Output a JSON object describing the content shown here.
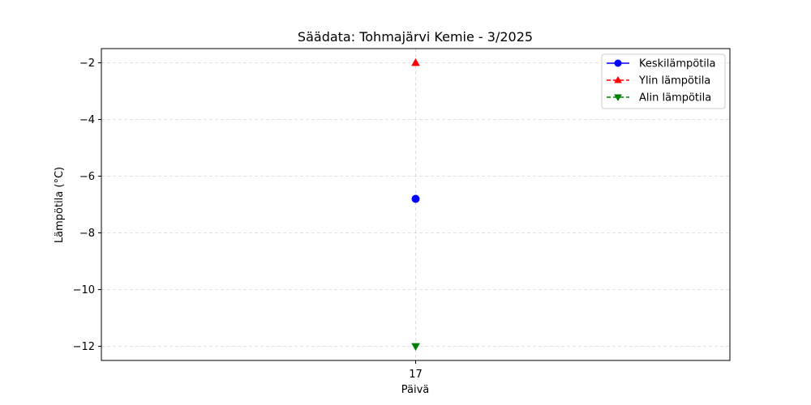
{
  "chart_data": {
    "type": "line",
    "title": "Säädata: Tohmajärvi Kemie - 3/2025",
    "xlabel": "Päivä",
    "ylabel": "Lämpötila (°C)",
    "x": [
      17
    ],
    "x_tick_labels": [
      "17"
    ],
    "ylim": [
      -12.5,
      -1.5
    ],
    "y_ticks": [
      -2,
      -4,
      -6,
      -8,
      -10,
      -12
    ],
    "y_tick_labels": [
      "−2",
      "−4",
      "−6",
      "−8",
      "−10",
      "−12"
    ],
    "grid": true,
    "legend_position": "top-right",
    "series": [
      {
        "name": "Keskilämpötila",
        "values": [
          -6.8
        ],
        "color": "#0000ff",
        "marker": "circle",
        "linestyle": "solid"
      },
      {
        "name": "Ylin lämpötila",
        "values": [
          -2.0
        ],
        "color": "#ff0000",
        "marker": "triangle-up",
        "linestyle": "dashed"
      },
      {
        "name": "Alin lämpötila",
        "values": [
          -12.0
        ],
        "color": "#008000",
        "marker": "triangle-down",
        "linestyle": "dashed"
      }
    ]
  }
}
